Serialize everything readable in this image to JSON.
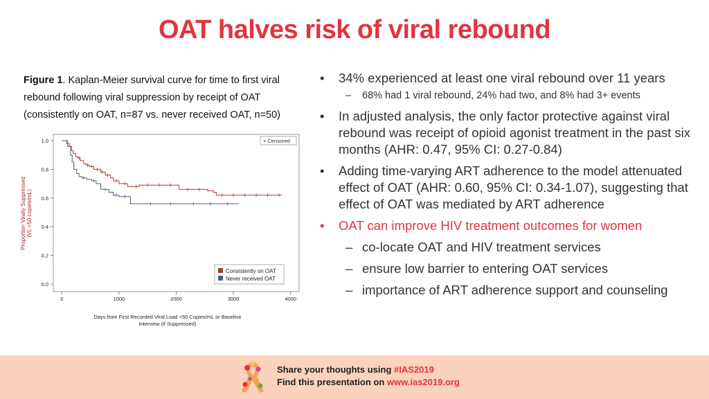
{
  "slide": {
    "title": "OAT halves risk of viral rebound"
  },
  "caption": {
    "figure_label": "Figure 1",
    "text": ". Kaplan-Meier survival curve for time to first viral rebound following viral suppression by receipt of OAT (consistently on OAT, n=87 vs. never received OAT, n=50)"
  },
  "bullets": [
    {
      "level": 1,
      "text": "34% experienced at least one viral rebound over 11 years",
      "color": "#333333"
    },
    {
      "level": 2,
      "text": "68% had 1 viral rebound, 24% had two, and 8% had 3+ events",
      "color": "#333333"
    },
    {
      "level": 1,
      "text": "In adjusted analysis, the only factor protective against viral rebound was receipt of opioid agonist treatment in the past six months (AHR: 0.47, 95% CI: 0.27-0.84)",
      "color": "#333333"
    },
    {
      "level": 1,
      "text": "Adding time-varying ART adherence to the model attenuated effect of OAT (AHR: 0.60, 95% CI: 0.34-1.07), suggesting that effect of OAT was mediated by ART adherence",
      "color": "#333333"
    },
    {
      "level": 1,
      "text": "OAT can improve HIV treatment outcomes for women",
      "color": "#e1343f"
    },
    {
      "level": 2,
      "text": "co-locate OAT and HIV treatment services",
      "color": "#333333"
    },
    {
      "level": 2,
      "text": "ensure low barrier to entering OAT services",
      "color": "#333333"
    },
    {
      "level": 2,
      "text": "importance of ART adherence support and counseling",
      "color": "#333333"
    }
  ],
  "footer": {
    "line1_prefix": "Share your thoughts using ",
    "line1_highlight": "#IAS2019",
    "line2_prefix": "Find this presentation on ",
    "line2_highlight": "www.ias2019.org",
    "background": "#fbd2bb",
    "accent": "#e1343f"
  },
  "chart_data": {
    "type": "line",
    "subtype": "kaplan-meier step",
    "xlabel": "Days from First Recorded Viral Load <50 Copies/mL or Baseline Interview (if Suppressed)",
    "ylabel": "Proportion Virally Suppressed (VL <50 copies/mL)",
    "xlim": [
      0,
      4000
    ],
    "ylim": [
      0,
      1
    ],
    "x_ticks": [
      0,
      1000,
      2000,
      3000,
      4000
    ],
    "y_ticks": [
      "0.0",
      "0.2",
      "0.4",
      "0.6",
      "0.8",
      "1.0"
    ],
    "censored_label": "+ Censored",
    "legend_position": "bottom-right",
    "series": [
      {
        "name": "Consistently on OAT",
        "color": "#a03c2e",
        "x": [
          0,
          80,
          130,
          170,
          200,
          240,
          270,
          320,
          380,
          420,
          480,
          560,
          680,
          760,
          850,
          900,
          1000,
          1150,
          1350,
          2050,
          2550,
          2650,
          2700,
          3850
        ],
        "y": [
          1.0,
          0.98,
          0.96,
          0.93,
          0.91,
          0.89,
          0.88,
          0.86,
          0.84,
          0.83,
          0.82,
          0.8,
          0.78,
          0.76,
          0.74,
          0.72,
          0.7,
          0.68,
          0.69,
          0.66,
          0.65,
          0.64,
          0.62,
          0.62
        ],
        "censor_x": [
          300,
          450,
          520,
          620,
          700,
          800,
          950,
          1100,
          1300,
          1500,
          1700,
          1900,
          2200,
          2400,
          2800,
          3000,
          3200,
          3400,
          3600,
          3800
        ]
      },
      {
        "name": "Never received OAT",
        "color": "#4a5d7a",
        "x": [
          0,
          100,
          150,
          180,
          210,
          260,
          300,
          350,
          430,
          520,
          600,
          680,
          820,
          900,
          1000,
          1200,
          3100
        ],
        "y": [
          1.0,
          0.96,
          0.9,
          0.85,
          0.8,
          0.77,
          0.75,
          0.74,
          0.73,
          0.72,
          0.7,
          0.66,
          0.64,
          0.62,
          0.61,
          0.56,
          0.56
        ],
        "censor_x": [
          380,
          560,
          760,
          950,
          1100,
          1550,
          1900,
          2300,
          2600,
          2900
        ]
      }
    ]
  }
}
